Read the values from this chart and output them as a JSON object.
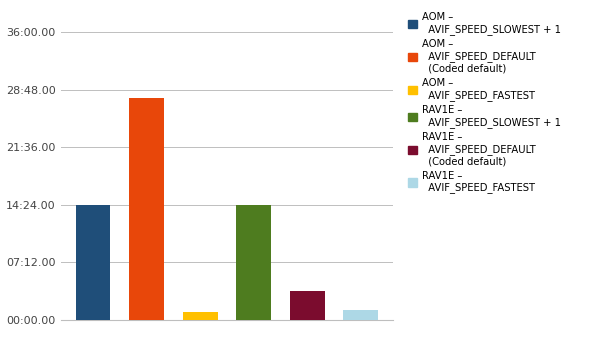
{
  "values_seconds": [
    860,
    1668,
    55,
    864,
    215,
    75
  ],
  "bar_colors": [
    "#1F4E79",
    "#E8470A",
    "#FFC000",
    "#4E7C1F",
    "#7B0C2E",
    "#ADD8E6"
  ],
  "yticks_seconds": [
    0,
    432,
    864,
    1296,
    1728,
    2160
  ],
  "ytick_labels": [
    "00:00.00",
    "07:12.00",
    "14:24.00",
    "21:36.00",
    "28:48.00",
    "36:00.00"
  ],
  "ylim_max": 2300,
  "legend_labels": [
    "AOM –\n  AVIF_SPEED_SLOWEST + 1",
    "AOM –\n  AVIF_SPEED_DEFAULT\n  (Coded default)",
    "AOM –\n  AVIF_SPEED_FASTEST",
    "RAV1E –\n  AVIF_SPEED_SLOWEST + 1",
    "RAV1E –\n  AVIF_SPEED_DEFAULT\n  (Coded default)",
    "RAV1E –\n  AVIF_SPEED_FASTEST"
  ],
  "ylabel_color": "#1F5BA8",
  "grid_color": "#BEBEBE",
  "background_color": "#FFFFFF",
  "bar_width": 0.65,
  "fig_width": 6.05,
  "fig_height": 3.4,
  "dpi": 100
}
